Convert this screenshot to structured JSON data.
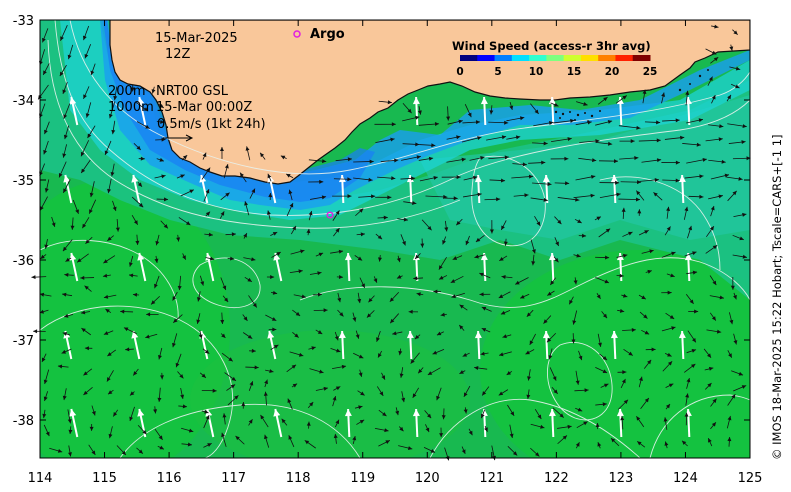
{
  "map": {
    "date_line": "15-Mar-2025",
    "time_line": "12Z",
    "depth_a": "200m",
    "depth_b": "1000m",
    "product_line": "NRT00 GSL",
    "product_time": "15-Mar 00:00Z",
    "scale_label": "0.5m/s (1kt 24h)",
    "argo_label": "Argo",
    "credit": "© IMOS 18-Mar-2025 15:22 Hobart; Tscale=CARS+[-1 1]",
    "colors": {
      "land": "#f9c79a",
      "coast": "#111111",
      "contour": "#e8f2ee",
      "argo": "#e020e0"
    },
    "x_ticks": [
      "114",
      "115",
      "116",
      "117",
      "118",
      "119",
      "120",
      "121",
      "122",
      "123",
      "124",
      "125"
    ],
    "y_ticks": [
      "-33",
      "-34",
      "-35",
      "-36",
      "-37",
      "-38"
    ],
    "legend": {
      "title": "Wind Speed (access-r 3hr avg)",
      "ticks": [
        "0",
        "5",
        "10",
        "15",
        "20",
        "25"
      ],
      "colors": [
        "#00007f",
        "#0000ff",
        "#007fff",
        "#00dfff",
        "#2fffcf",
        "#7fff7f",
        "#cfff2f",
        "#ffdf00",
        "#ff7f00",
        "#ff2000",
        "#7f0000"
      ]
    }
  }
}
